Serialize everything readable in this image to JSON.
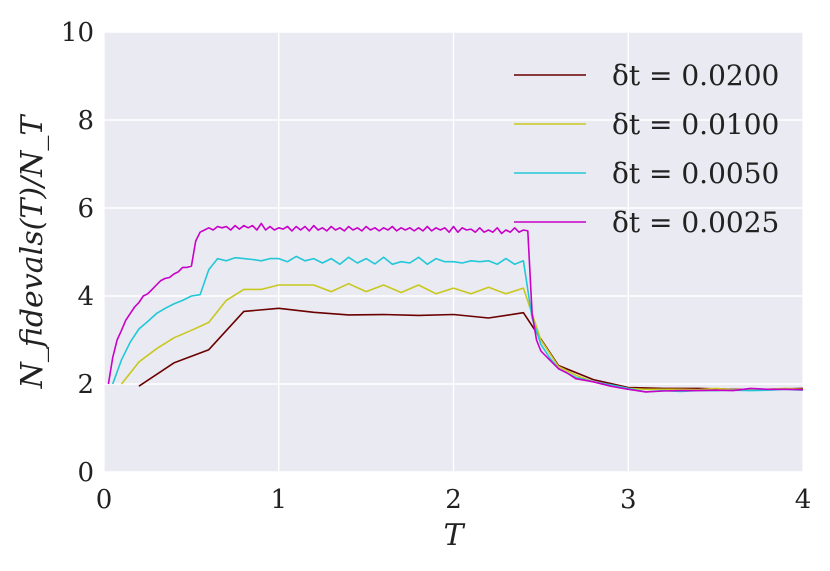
{
  "chart_data": {
    "type": "line",
    "xlabel": "T",
    "ylabel": "N_fidevals(T)/N_T",
    "xlim": [
      0,
      4
    ],
    "ylim": [
      0,
      10
    ],
    "xticks": [
      "0",
      "1",
      "2",
      "3",
      "4"
    ],
    "yticks": [
      "0",
      "2",
      "4",
      "6",
      "8",
      "10"
    ],
    "grid": true,
    "legend_position": "top-right",
    "series": [
      {
        "name": "δt = 0.0200",
        "color": "#6b0000",
        "x": [
          0.2,
          0.4,
          0.6,
          0.8,
          1.0,
          1.2,
          1.4,
          1.6,
          1.8,
          2.0,
          2.2,
          2.4,
          2.6,
          2.8,
          3.0,
          3.2,
          3.4,
          3.6,
          3.8,
          4.0
        ],
        "y": [
          1.95,
          2.48,
          2.78,
          3.65,
          3.72,
          3.63,
          3.57,
          3.58,
          3.56,
          3.58,
          3.5,
          3.62,
          2.42,
          2.1,
          1.92,
          1.9,
          1.9,
          1.88,
          1.88,
          1.9
        ]
      },
      {
        "name": "δt = 0.0100",
        "color": "#c8c81e",
        "x": [
          0.1,
          0.2,
          0.3,
          0.4,
          0.5,
          0.6,
          0.7,
          0.8,
          0.9,
          1.0,
          1.1,
          1.2,
          1.3,
          1.4,
          1.5,
          1.6,
          1.7,
          1.8,
          1.9,
          2.0,
          2.1,
          2.2,
          2.3,
          2.4,
          2.5,
          2.6,
          2.7,
          2.8,
          2.9,
          3.0,
          3.1,
          3.2,
          3.3,
          3.4,
          3.5,
          3.6,
          3.7,
          3.8,
          3.9,
          4.0
        ],
        "y": [
          2.0,
          2.5,
          2.8,
          3.05,
          3.22,
          3.4,
          3.9,
          4.15,
          4.15,
          4.25,
          4.25,
          4.25,
          4.1,
          4.28,
          4.1,
          4.25,
          4.08,
          4.25,
          4.05,
          4.18,
          4.05,
          4.2,
          4.05,
          4.18,
          3.0,
          2.4,
          2.2,
          2.05,
          1.98,
          1.9,
          1.88,
          1.88,
          1.88,
          1.87,
          1.9,
          1.87,
          1.88,
          1.88,
          1.9,
          1.88
        ]
      },
      {
        "name": "δt = 0.0050",
        "color": "#22c8d8",
        "x": [
          0.05,
          0.1,
          0.15,
          0.2,
          0.25,
          0.3,
          0.35,
          0.4,
          0.45,
          0.5,
          0.55,
          0.6,
          0.65,
          0.7,
          0.75,
          0.8,
          0.85,
          0.9,
          0.95,
          1.0,
          1.05,
          1.1,
          1.15,
          1.2,
          1.25,
          1.3,
          1.35,
          1.4,
          1.45,
          1.5,
          1.55,
          1.6,
          1.65,
          1.7,
          1.75,
          1.8,
          1.85,
          1.9,
          1.95,
          2.0,
          2.05,
          2.1,
          2.15,
          2.2,
          2.25,
          2.3,
          2.35,
          2.4,
          2.45,
          2.5,
          2.55,
          2.6,
          2.7,
          2.8,
          2.9,
          3.0,
          3.1,
          3.2,
          3.3,
          3.4,
          3.5,
          3.6,
          3.7,
          3.8,
          3.9,
          4.0
        ],
        "y": [
          2.0,
          2.55,
          2.95,
          3.25,
          3.42,
          3.6,
          3.72,
          3.82,
          3.9,
          4.0,
          4.03,
          4.6,
          4.85,
          4.8,
          4.87,
          4.85,
          4.83,
          4.8,
          4.85,
          4.85,
          4.78,
          4.9,
          4.8,
          4.85,
          4.75,
          4.85,
          4.72,
          4.88,
          4.75,
          4.85,
          4.73,
          4.88,
          4.72,
          4.78,
          4.75,
          4.88,
          4.72,
          4.85,
          4.78,
          4.78,
          4.75,
          4.8,
          4.78,
          4.8,
          4.72,
          4.85,
          4.72,
          4.8,
          3.5,
          2.9,
          2.6,
          2.35,
          2.15,
          2.05,
          1.98,
          1.9,
          1.82,
          1.85,
          1.83,
          1.85,
          1.85,
          1.86,
          1.85,
          1.86,
          1.88,
          1.86
        ]
      },
      {
        "name": "δt = 0.0025",
        "color": "#c800c8",
        "x": [
          0.025,
          0.05,
          0.075,
          0.1,
          0.125,
          0.15,
          0.175,
          0.2,
          0.225,
          0.25,
          0.275,
          0.3,
          0.325,
          0.35,
          0.375,
          0.4,
          0.425,
          0.45,
          0.475,
          0.5,
          0.525,
          0.55,
          0.575,
          0.6,
          0.625,
          0.65,
          0.675,
          0.7,
          0.725,
          0.75,
          0.775,
          0.8,
          0.825,
          0.85,
          0.875,
          0.9,
          0.925,
          0.95,
          0.975,
          1.0,
          1.025,
          1.05,
          1.075,
          1.1,
          1.125,
          1.15,
          1.175,
          1.2,
          1.225,
          1.25,
          1.275,
          1.3,
          1.325,
          1.35,
          1.375,
          1.4,
          1.425,
          1.45,
          1.475,
          1.5,
          1.525,
          1.55,
          1.575,
          1.6,
          1.625,
          1.65,
          1.675,
          1.7,
          1.725,
          1.75,
          1.775,
          1.8,
          1.825,
          1.85,
          1.875,
          1.9,
          1.925,
          1.95,
          1.975,
          2.0,
          2.025,
          2.05,
          2.075,
          2.1,
          2.125,
          2.15,
          2.175,
          2.2,
          2.225,
          2.25,
          2.275,
          2.3,
          2.325,
          2.35,
          2.375,
          2.4,
          2.425,
          2.45,
          2.475,
          2.5,
          2.55,
          2.6,
          2.65,
          2.7,
          2.8,
          2.9,
          3.0,
          3.1,
          3.2,
          3.3,
          3.4,
          3.5,
          3.6,
          3.7,
          3.8,
          3.9,
          4.0
        ],
        "y": [
          2.0,
          2.6,
          3.0,
          3.22,
          3.45,
          3.6,
          3.75,
          3.85,
          4.0,
          4.05,
          4.15,
          4.25,
          4.35,
          4.4,
          4.42,
          4.5,
          4.55,
          4.65,
          4.65,
          4.68,
          5.25,
          5.45,
          5.5,
          5.55,
          5.5,
          5.58,
          5.55,
          5.58,
          5.5,
          5.6,
          5.52,
          5.6,
          5.55,
          5.6,
          5.5,
          5.65,
          5.5,
          5.58,
          5.5,
          5.55,
          5.52,
          5.58,
          5.48,
          5.58,
          5.5,
          5.58,
          5.48,
          5.6,
          5.5,
          5.55,
          5.48,
          5.58,
          5.5,
          5.55,
          5.48,
          5.58,
          5.5,
          5.55,
          5.48,
          5.58,
          5.5,
          5.55,
          5.48,
          5.55,
          5.5,
          5.58,
          5.48,
          5.55,
          5.5,
          5.55,
          5.48,
          5.55,
          5.48,
          5.58,
          5.48,
          5.55,
          5.5,
          5.55,
          5.45,
          5.58,
          5.45,
          5.55,
          5.5,
          5.52,
          5.45,
          5.55,
          5.45,
          5.5,
          5.45,
          5.55,
          5.42,
          5.5,
          5.45,
          5.55,
          5.45,
          5.5,
          5.48,
          3.6,
          3.0,
          2.75,
          2.55,
          2.35,
          2.25,
          2.12,
          2.05,
          1.95,
          1.88,
          1.82,
          1.84,
          1.85,
          1.85,
          1.86,
          1.85,
          1.9,
          1.88,
          1.88,
          1.87
        ]
      }
    ]
  }
}
